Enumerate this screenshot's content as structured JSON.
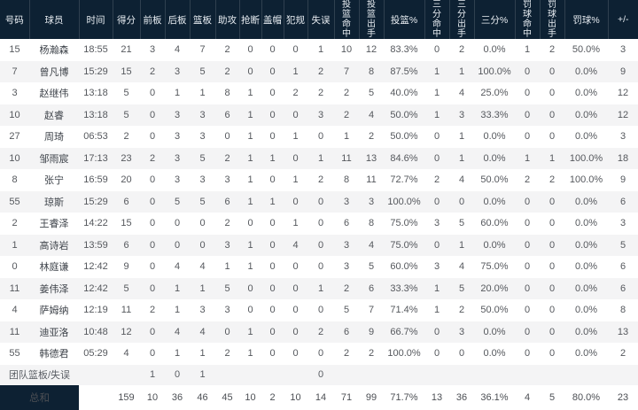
{
  "table": {
    "columns": [
      {
        "key": "number",
        "label": "号码",
        "stacked": false
      },
      {
        "key": "player",
        "label": "球员",
        "stacked": false
      },
      {
        "key": "time",
        "label": "时间",
        "stacked": false
      },
      {
        "key": "points",
        "label": "得分",
        "stacked": false
      },
      {
        "key": "oreb",
        "label": "前板",
        "stacked": false
      },
      {
        "key": "dreb",
        "label": "后板",
        "stacked": false
      },
      {
        "key": "reb",
        "label": "篮板",
        "stacked": false
      },
      {
        "key": "ast",
        "label": "助攻",
        "stacked": false
      },
      {
        "key": "stl",
        "label": "抢断",
        "stacked": false
      },
      {
        "key": "blk",
        "label": "盖帽",
        "stacked": false
      },
      {
        "key": "pf",
        "label": "犯规",
        "stacked": false
      },
      {
        "key": "to",
        "label": "失误",
        "stacked": false
      },
      {
        "key": "fgm",
        "label": "投篮命中",
        "stacked": true
      },
      {
        "key": "fga",
        "label": "投篮出手",
        "stacked": true
      },
      {
        "key": "fgp",
        "label": "投篮%",
        "stacked": false
      },
      {
        "key": "tpm",
        "label": "三分命中",
        "stacked": true
      },
      {
        "key": "tpa",
        "label": "三分出手",
        "stacked": true
      },
      {
        "key": "tpp",
        "label": "三分%",
        "stacked": false
      },
      {
        "key": "ftm",
        "label": "罚球命中",
        "stacked": true
      },
      {
        "key": "fta",
        "label": "罚球出手",
        "stacked": true
      },
      {
        "key": "ftp",
        "label": "罚球%",
        "stacked": false
      },
      {
        "key": "pm",
        "label": "+/-",
        "stacked": false
      }
    ],
    "players": [
      [
        "15",
        "杨瀚森",
        "18:55",
        "21",
        "3",
        "4",
        "7",
        "2",
        "0",
        "0",
        "0",
        "1",
        "10",
        "12",
        "83.3%",
        "0",
        "2",
        "0.0%",
        "1",
        "2",
        "50.0%",
        "3"
      ],
      [
        "7",
        "曾凡博",
        "15:29",
        "15",
        "2",
        "3",
        "5",
        "2",
        "0",
        "0",
        "1",
        "2",
        "7",
        "8",
        "87.5%",
        "1",
        "1",
        "100.0%",
        "0",
        "0",
        "0.0%",
        "9"
      ],
      [
        "3",
        "赵继伟",
        "13:18",
        "5",
        "0",
        "1",
        "1",
        "8",
        "1",
        "0",
        "2",
        "2",
        "2",
        "5",
        "40.0%",
        "1",
        "4",
        "25.0%",
        "0",
        "0",
        "0.0%",
        "12"
      ],
      [
        "10",
        "赵睿",
        "13:18",
        "5",
        "0",
        "3",
        "3",
        "6",
        "1",
        "0",
        "0",
        "3",
        "2",
        "4",
        "50.0%",
        "1",
        "3",
        "33.3%",
        "0",
        "0",
        "0.0%",
        "12"
      ],
      [
        "27",
        "周琦",
        "06:53",
        "2",
        "0",
        "3",
        "3",
        "0",
        "1",
        "0",
        "1",
        "0",
        "1",
        "2",
        "50.0%",
        "0",
        "1",
        "0.0%",
        "0",
        "0",
        "0.0%",
        "3"
      ],
      [
        "10",
        "邹雨宸",
        "17:13",
        "23",
        "2",
        "3",
        "5",
        "2",
        "1",
        "1",
        "0",
        "1",
        "11",
        "13",
        "84.6%",
        "0",
        "1",
        "0.0%",
        "1",
        "1",
        "100.0%",
        "18"
      ],
      [
        "8",
        "张宁",
        "16:59",
        "20",
        "0",
        "3",
        "3",
        "3",
        "1",
        "0",
        "1",
        "2",
        "8",
        "11",
        "72.7%",
        "2",
        "4",
        "50.0%",
        "2",
        "2",
        "100.0%",
        "9"
      ],
      [
        "55",
        "琼斯",
        "15:29",
        "6",
        "0",
        "5",
        "5",
        "6",
        "1",
        "1",
        "0",
        "0",
        "3",
        "3",
        "100.0%",
        "0",
        "0",
        "0.0%",
        "0",
        "0",
        "0.0%",
        "6"
      ],
      [
        "2",
        "王睿泽",
        "14:22",
        "15",
        "0",
        "0",
        "0",
        "2",
        "0",
        "0",
        "1",
        "0",
        "6",
        "8",
        "75.0%",
        "3",
        "5",
        "60.0%",
        "0",
        "0",
        "0.0%",
        "3"
      ],
      [
        "1",
        "高诗岩",
        "13:59",
        "6",
        "0",
        "0",
        "0",
        "3",
        "1",
        "0",
        "4",
        "0",
        "3",
        "4",
        "75.0%",
        "0",
        "1",
        "0.0%",
        "0",
        "0",
        "0.0%",
        "5"
      ],
      [
        "0",
        "林庭谦",
        "12:42",
        "9",
        "0",
        "4",
        "4",
        "1",
        "1",
        "0",
        "0",
        "0",
        "3",
        "5",
        "60.0%",
        "3",
        "4",
        "75.0%",
        "0",
        "0",
        "0.0%",
        "6"
      ],
      [
        "11",
        "姜伟泽",
        "12:42",
        "5",
        "0",
        "1",
        "1",
        "5",
        "0",
        "0",
        "0",
        "1",
        "2",
        "6",
        "33.3%",
        "1",
        "5",
        "20.0%",
        "0",
        "0",
        "0.0%",
        "6"
      ],
      [
        "4",
        "萨姆纳",
        "12:19",
        "11",
        "2",
        "1",
        "3",
        "3",
        "0",
        "0",
        "0",
        "0",
        "5",
        "7",
        "71.4%",
        "1",
        "2",
        "50.0%",
        "0",
        "0",
        "0.0%",
        "8"
      ],
      [
        "11",
        "迪亚洛",
        "10:48",
        "12",
        "0",
        "4",
        "4",
        "0",
        "1",
        "0",
        "0",
        "2",
        "6",
        "9",
        "66.7%",
        "0",
        "3",
        "0.0%",
        "0",
        "0",
        "0.0%",
        "13"
      ],
      [
        "55",
        "韩德君",
        "05:29",
        "4",
        "0",
        "1",
        "1",
        "2",
        "1",
        "0",
        "0",
        "0",
        "2",
        "2",
        "100.0%",
        "0",
        "0",
        "0.0%",
        "0",
        "0",
        "0.0%",
        "2"
      ]
    ],
    "team_row": {
      "label": "团队篮板/失误",
      "values": [
        "",
        "",
        "1",
        "0",
        "1",
        "",
        "",
        "",
        "",
        "0",
        "",
        "",
        "",
        "",
        "",
        "",
        "",
        "",
        "",
        ""
      ]
    },
    "total_row": {
      "label": "总和",
      "values": [
        "",
        "159",
        "10",
        "36",
        "46",
        "45",
        "10",
        "2",
        "10",
        "14",
        "71",
        "99",
        "71.7%",
        "13",
        "36",
        "36.1%",
        "4",
        "5",
        "80.0%",
        "23"
      ]
    }
  },
  "colors": {
    "header_bg": "#0d2133",
    "header_text": "#e9eef3",
    "row_alt_bg": "#f4f4f5",
    "row_bg": "#ffffff",
    "total_label_bg": "#0d2133",
    "body_text": "#55585d"
  }
}
